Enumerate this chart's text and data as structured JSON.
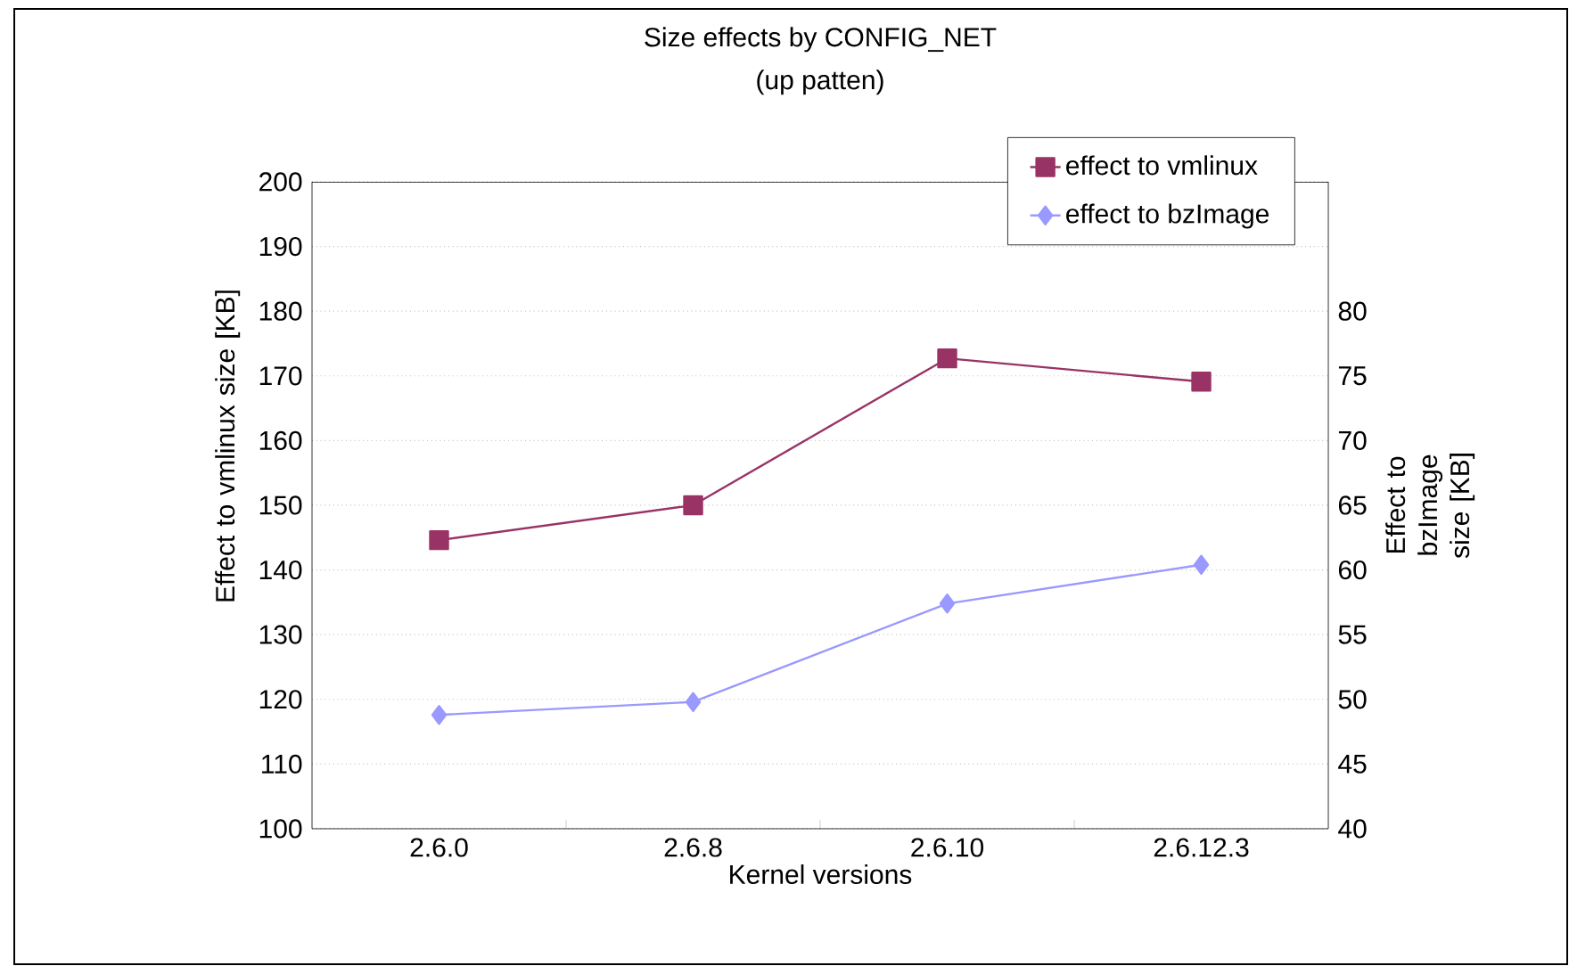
{
  "chart_data": {
    "type": "line",
    "title": "Size effects by CONFIG_NET",
    "subtitle": "(up patten)",
    "xlabel": "Kernel versions",
    "ylabel": "Effect to vmlinux size [KB]",
    "y2label": "Effect to bzImage size [KB]",
    "categories": [
      "2.6.0",
      "2.6.8",
      "2.6.10",
      "2.6.12.3"
    ],
    "series": [
      {
        "name": "effect to vmlinux",
        "color": "#993366",
        "marker": "square",
        "values": [
          144.6,
          150.0,
          172.7,
          169.1
        ]
      },
      {
        "name": "effect to bzImage",
        "color": "#9999ff",
        "marker": "diamond",
        "axis": "y2",
        "values": [
          48.8,
          49.8,
          57.4,
          60.4
        ]
      }
    ],
    "ylim": [
      100,
      200
    ],
    "yticks": [
      100,
      110,
      120,
      130,
      140,
      150,
      160,
      170,
      180,
      190,
      200
    ],
    "y2lim": [
      40,
      90
    ],
    "y2ticks": [
      40,
      45,
      50,
      55,
      60,
      65,
      70,
      75,
      80
    ],
    "grid": "y",
    "legend": "top right",
    "line_style": "solid"
  }
}
